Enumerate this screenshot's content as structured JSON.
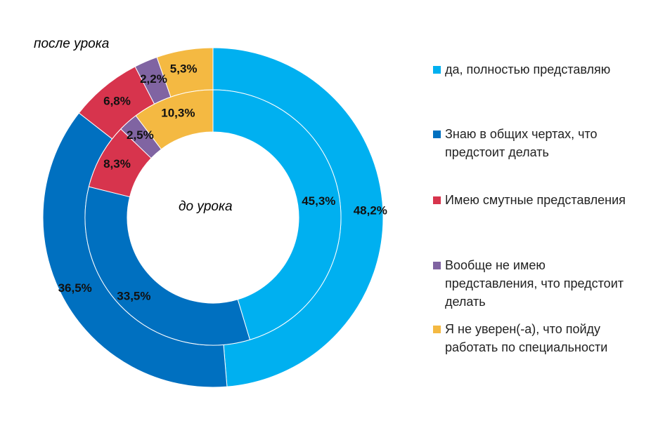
{
  "chart_data": {
    "type": "pie",
    "categories": [
      "да, полностью представляю",
      "Знаю в общих чертах, что предстоит делать",
      "Имею смутные представления",
      "Вообще не имею представления, что предстоит делать",
      "Я не уверен(-а), что пойду работать по специальности"
    ],
    "colors": [
      "#00b0f0",
      "#0070c0",
      "#d7344d",
      "#8064a2",
      "#f4b942"
    ],
    "series": [
      {
        "name": "после урока",
        "ring": "outer",
        "values": [
          48.2,
          36.5,
          6.8,
          2.2,
          5.3
        ],
        "labels": [
          "48,2%",
          "36,5%",
          "6,8%",
          "2,2%",
          "5,3%"
        ]
      },
      {
        "name": "до урока",
        "ring": "inner",
        "values": [
          45.3,
          33.5,
          8.3,
          2.5,
          10.3
        ],
        "labels": [
          "45,3%",
          "33,5%",
          "8,3%",
          "2,5%",
          "10,3%"
        ]
      }
    ],
    "legend_position": "right"
  }
}
